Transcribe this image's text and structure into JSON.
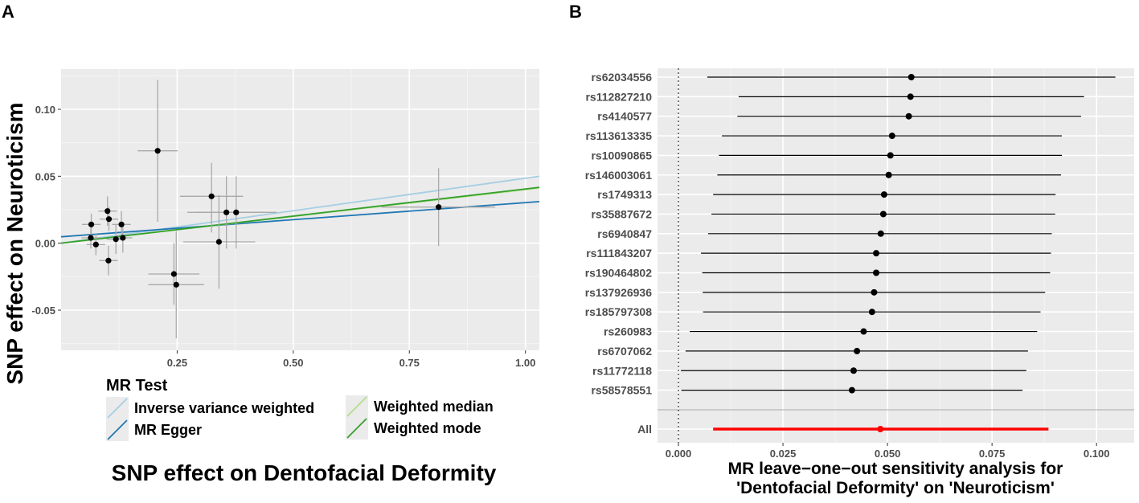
{
  "chart_data": [
    {
      "panel": "A",
      "type": "scatter",
      "title": "",
      "xlabel": "SNP effect on Dentofacial Deformity",
      "ylabel": "SNP effect on Neuroticism",
      "xlim": [
        0.0,
        1.03
      ],
      "ylim": [
        -0.08,
        0.13
      ],
      "x_ticks": [
        {
          "value": 0.25,
          "label": "0.25"
        },
        {
          "value": 0.5,
          "label": "0.50"
        },
        {
          "value": 0.75,
          "label": "0.75"
        },
        {
          "value": 1.0,
          "label": "1.00"
        }
      ],
      "y_ticks": [
        {
          "value": 0.1,
          "label": "0.10"
        },
        {
          "value": 0.05,
          "label": "0.05"
        },
        {
          "value": 0.0,
          "label": "0.00"
        },
        {
          "value": -0.05,
          "label": "-0.05"
        }
      ],
      "points": [
        {
          "x": 0.065,
          "y": 0.014,
          "x_lo": 0.045,
          "x_hi": 0.085,
          "y_lo": 0.006,
          "y_hi": 0.022
        },
        {
          "x": 0.064,
          "y": 0.004,
          "x_lo": 0.044,
          "x_hi": 0.084,
          "y_lo": -0.004,
          "y_hi": 0.012
        },
        {
          "x": 0.075,
          "y": -0.001,
          "x_lo": 0.055,
          "x_hi": 0.095,
          "y_lo": -0.009,
          "y_hi": 0.007
        },
        {
          "x": 0.1,
          "y": 0.024,
          "x_lo": 0.08,
          "x_hi": 0.12,
          "y_lo": 0.013,
          "y_hi": 0.035
        },
        {
          "x": 0.103,
          "y": 0.018,
          "x_lo": 0.083,
          "x_hi": 0.123,
          "y_lo": 0.009,
          "y_hi": 0.027
        },
        {
          "x": 0.102,
          "y": -0.013,
          "x_lo": 0.082,
          "x_hi": 0.122,
          "y_lo": -0.024,
          "y_hi": -0.002
        },
        {
          "x": 0.118,
          "y": 0.003,
          "x_lo": 0.098,
          "x_hi": 0.138,
          "y_lo": -0.008,
          "y_hi": 0.014
        },
        {
          "x": 0.13,
          "y": 0.014,
          "x_lo": 0.11,
          "x_hi": 0.15,
          "y_lo": 0.004,
          "y_hi": 0.024
        },
        {
          "x": 0.133,
          "y": 0.004,
          "x_lo": 0.113,
          "x_hi": 0.153,
          "y_lo": -0.007,
          "y_hi": 0.015
        },
        {
          "x": 0.208,
          "y": 0.069,
          "x_lo": 0.165,
          "x_hi": 0.251,
          "y_lo": 0.016,
          "y_hi": 0.122
        },
        {
          "x": 0.243,
          "y": -0.023,
          "x_lo": 0.188,
          "x_hi": 0.298,
          "y_lo": -0.046,
          "y_hi": 0.0
        },
        {
          "x": 0.248,
          "y": -0.031,
          "x_lo": 0.188,
          "x_hi": 0.308,
          "y_lo": -0.071,
          "y_hi": 0.009
        },
        {
          "x": 0.324,
          "y": 0.035,
          "x_lo": 0.256,
          "x_hi": 0.392,
          "y_lo": 0.008,
          "y_hi": 0.06
        },
        {
          "x": 0.34,
          "y": 0.001,
          "x_lo": 0.263,
          "x_hi": 0.418,
          "y_lo": -0.034,
          "y_hi": 0.036
        },
        {
          "x": 0.356,
          "y": 0.023,
          "x_lo": 0.272,
          "x_hi": 0.44,
          "y_lo": -0.004,
          "y_hi": 0.05
        },
        {
          "x": 0.377,
          "y": 0.023,
          "x_lo": 0.29,
          "x_hi": 0.464,
          "y_lo": -0.004,
          "y_hi": 0.05
        },
        {
          "x": 0.813,
          "y": 0.027,
          "x_lo": 0.69,
          "x_hi": 0.935,
          "y_lo": -0.002,
          "y_hi": 0.056
        }
      ],
      "lines": [
        {
          "name": "Inverse variance weighted",
          "color": "#a6cee3",
          "intercept": 0.0,
          "slope": 0.0485
        },
        {
          "name": "MR Egger",
          "color": "#1f78b4",
          "intercept": 0.0048,
          "slope": 0.0255
        },
        {
          "name": "Weighted median",
          "color": "#b2df8a",
          "intercept": 0.0,
          "slope": 0.04
        },
        {
          "name": "Weighted mode",
          "color": "#33a02c",
          "intercept": 0.0,
          "slope": 0.0405
        }
      ],
      "legend": {
        "title": "MR Test",
        "position": "bottom",
        "entries": [
          "Inverse variance weighted",
          "MR Egger",
          "Weighted median",
          "Weighted mode"
        ]
      }
    },
    {
      "panel": "B",
      "type": "forest",
      "xlabel_lines": [
        "MR leave−one−out sensitivity analysis for",
        "'Dentofacial Deformity' on 'Neuroticism'"
      ],
      "xlim": [
        -0.005,
        0.109
      ],
      "x_ticks": [
        {
          "value": 0.0,
          "label": "0.000"
        },
        {
          "value": 0.025,
          "label": "0.025"
        },
        {
          "value": 0.05,
          "label": "0.050"
        },
        {
          "value": 0.075,
          "label": "0.075"
        },
        {
          "value": 0.1,
          "label": "0.100"
        }
      ],
      "reference_line": 0,
      "snps": [
        {
          "label": "rs62034556",
          "est": 0.0557,
          "lo": 0.0069,
          "hi": 0.1045
        },
        {
          "label": "rs112827210",
          "est": 0.0555,
          "lo": 0.0144,
          "hi": 0.097
        },
        {
          "label": "rs4140577",
          "est": 0.0551,
          "lo": 0.0141,
          "hi": 0.0963
        },
        {
          "label": "rs113613335",
          "est": 0.0511,
          "lo": 0.0104,
          "hi": 0.0917
        },
        {
          "label": "rs10090865",
          "est": 0.0507,
          "lo": 0.0097,
          "hi": 0.0917
        },
        {
          "label": "rs146003061",
          "est": 0.0503,
          "lo": 0.0093,
          "hi": 0.0915
        },
        {
          "label": "rs1749313",
          "est": 0.0492,
          "lo": 0.0083,
          "hi": 0.0902
        },
        {
          "label": "rs35887672",
          "est": 0.049,
          "lo": 0.0079,
          "hi": 0.0901
        },
        {
          "label": "rs6940847",
          "est": 0.0484,
          "lo": 0.0071,
          "hi": 0.0893
        },
        {
          "label": "rs111843207",
          "est": 0.0473,
          "lo": 0.0054,
          "hi": 0.0891
        },
        {
          "label": "rs190464802",
          "est": 0.0473,
          "lo": 0.0057,
          "hi": 0.0889
        },
        {
          "label": "rs137926936",
          "est": 0.0468,
          "lo": 0.0058,
          "hi": 0.0877
        },
        {
          "label": "rs185797308",
          "est": 0.0463,
          "lo": 0.0059,
          "hi": 0.0866
        },
        {
          "label": "rs260983",
          "est": 0.0443,
          "lo": 0.0027,
          "hi": 0.0858
        },
        {
          "label": "rs6707062",
          "est": 0.0427,
          "lo": 0.0017,
          "hi": 0.0836
        },
        {
          "label": "rs11772118",
          "est": 0.0419,
          "lo": 0.0006,
          "hi": 0.0832
        },
        {
          "label": "rs58578551",
          "est": 0.0415,
          "lo": 0.0007,
          "hi": 0.0823
        }
      ],
      "overall": {
        "label": "All",
        "est": 0.0483,
        "lo": 0.0083,
        "hi": 0.0885,
        "color": "#ff0000"
      }
    }
  ]
}
